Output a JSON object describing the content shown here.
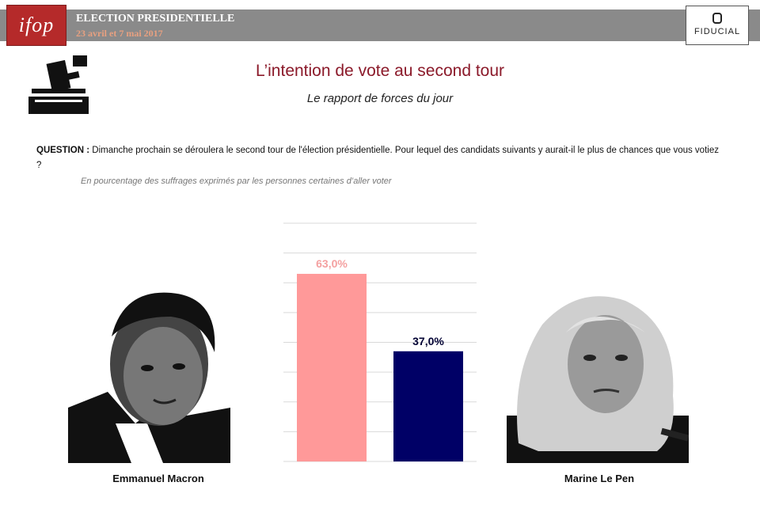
{
  "header": {
    "logo_text": "ifop",
    "title": "ELECTION PRESIDENTIELLE",
    "subtitle": "23 avril et 7 mai 2017",
    "partner": "FIDUCIAL",
    "bar_color": "#8a8a8a",
    "logo_color": "#b52a2a"
  },
  "icons": [
    "ballot-box-icon"
  ],
  "page": {
    "title": "L’intention de vote au second tour",
    "subtitle": "Le rapport de forces du jour",
    "question_label": "QUESTION :",
    "question_text": " Dimanche prochain se déroulera le second tour de l'élection présidentielle. Pour lequel des candidats suivants y aurait-il le plus de chances que vous votiez ?",
    "note": "En pourcentage des suffrages exprimés par les personnes certaines d’aller voter"
  },
  "candidates": [
    {
      "name": "Emmanuel Macron"
    },
    {
      "name": "Marine Le Pen"
    }
  ],
  "chart_data": {
    "type": "bar",
    "categories": [
      "Emmanuel Macron",
      "Marine Le Pen"
    ],
    "values": [
      63.0,
      37.0
    ],
    "data_labels": [
      "63,0%",
      "37,0%"
    ],
    "colors": [
      "#ff9999",
      "#000066"
    ],
    "label_colors": [
      "#f4a0a0",
      "#000033"
    ],
    "ylim": [
      0,
      80
    ],
    "gridlines": true
  }
}
